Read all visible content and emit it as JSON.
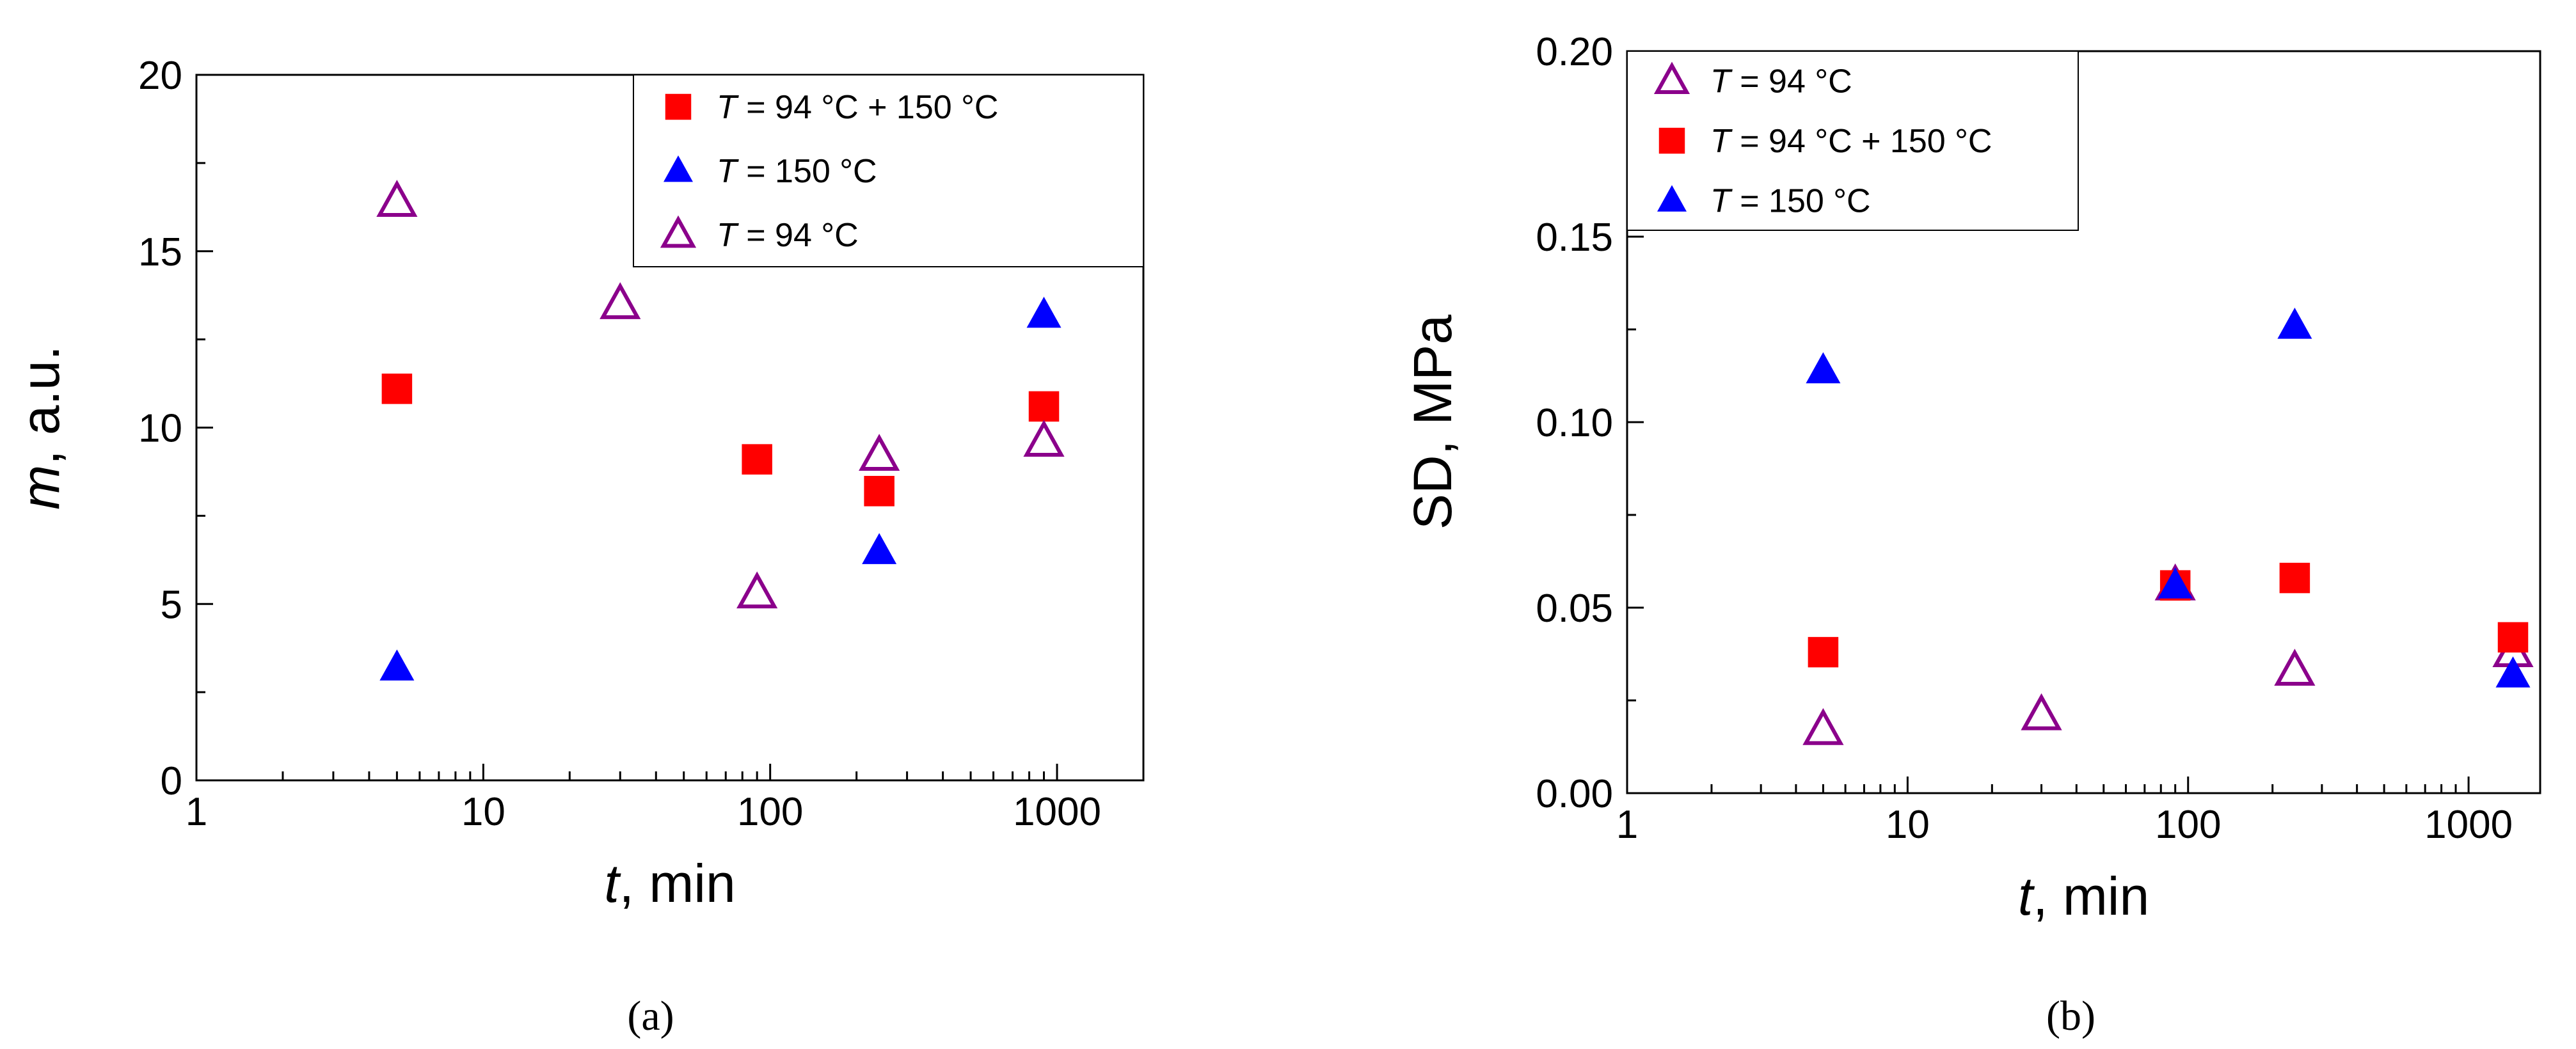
{
  "colors": {
    "square": "#ff0000",
    "filled_triangle": "#0000ff",
    "open_triangle": "#8b008b",
    "axis": "#000000"
  },
  "chart_data": [
    {
      "type": "scatter",
      "panel_label": "(a)",
      "xlabel_italic": "t",
      "xlabel_rest": ", min",
      "ylabel_italic": "m",
      "ylabel_rest": ", a.u.",
      "xscale": "log",
      "xlim": [
        1,
        2000
      ],
      "ylim": [
        0,
        20
      ],
      "xticks": [
        1,
        10,
        100,
        1000
      ],
      "xtick_labels": [
        "1",
        "10",
        "100",
        "1000"
      ],
      "yticks": [
        0,
        5,
        10,
        15,
        20
      ],
      "ytick_labels": [
        "0",
        "5",
        "10",
        "15",
        "20"
      ],
      "legend_position": "top-right",
      "series": [
        {
          "name": "T = 94 °C + 150 °C",
          "legend_italic": "T",
          "legend_rest": " = 94 °C + 150 °C",
          "marker": "square",
          "color": "#ff0000",
          "x": [
            5,
            90,
            240,
            900
          ],
          "y": [
            11.1,
            9.1,
            8.2,
            10.6
          ]
        },
        {
          "name": "T = 150 °C",
          "legend_italic": "T",
          "legend_rest": " = 150 °C",
          "marker": "filled_triangle",
          "color": "#0000ff",
          "x": [
            5,
            240,
            900
          ],
          "y": [
            3.2,
            6.5,
            13.2
          ]
        },
        {
          "name": "T = 94 °C",
          "legend_italic": "T",
          "legend_rest": " = 94 °C",
          "marker": "open_triangle",
          "color": "#8b008b",
          "x": [
            5,
            30,
            90,
            240,
            900
          ],
          "y": [
            16.4,
            13.5,
            5.3,
            9.2,
            9.6
          ]
        }
      ]
    },
    {
      "type": "scatter",
      "panel_label": "(b)",
      "xlabel_italic": "t",
      "xlabel_rest": ", min",
      "ylabel_italic": "",
      "ylabel_rest": "SD, MPa",
      "xscale": "log",
      "xlim": [
        1,
        1800
      ],
      "ylim": [
        0,
        0.2
      ],
      "xticks": [
        1,
        10,
        100,
        1000
      ],
      "xtick_labels": [
        "1",
        "10",
        "100",
        "1000"
      ],
      "yticks": [
        0,
        0.05,
        0.1,
        0.15,
        0.2
      ],
      "ytick_labels": [
        "0.00",
        "0.05",
        "0.10",
        "0.15",
        "0.20"
      ],
      "legend_position": "top-left",
      "series": [
        {
          "name": "T = 94 °C",
          "legend_italic": "T",
          "legend_rest": " = 94 °C",
          "marker": "open_triangle",
          "color": "#8b008b",
          "x": [
            5,
            30,
            90,
            240,
            1440
          ],
          "y": [
            0.017,
            0.021,
            0.056,
            0.033,
            0.038
          ]
        },
        {
          "name": "T = 94 °C + 150 °C",
          "legend_italic": "T",
          "legend_rest": " = 94 °C + 150 °C",
          "marker": "square",
          "color": "#ff0000",
          "x": [
            5,
            90,
            240,
            1440
          ],
          "y": [
            0.038,
            0.056,
            0.058,
            0.042
          ]
        },
        {
          "name": "T = 150 °C",
          "legend_italic": "T",
          "legend_rest": " = 150 °C",
          "marker": "filled_triangle",
          "color": "#0000ff",
          "x": [
            5,
            90,
            240,
            1440
          ],
          "y": [
            0.114,
            0.056,
            0.126,
            0.032
          ]
        }
      ]
    }
  ]
}
